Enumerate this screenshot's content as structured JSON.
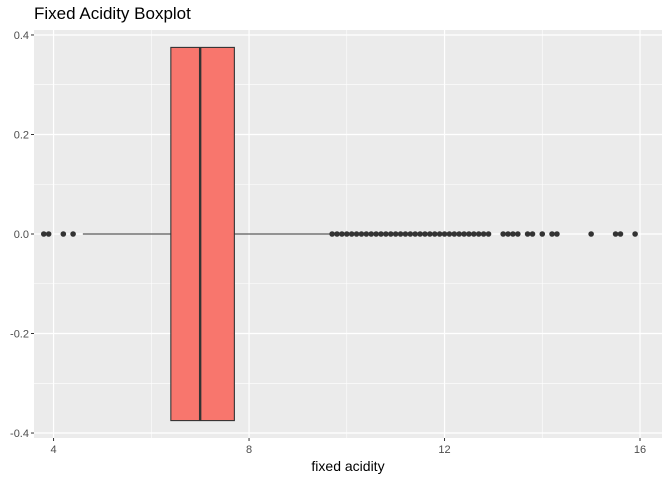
{
  "chart_data": {
    "type": "boxplot",
    "title": "Fixed Acidity Boxplot",
    "xlabel": "fixed acidity",
    "ylabel": "",
    "xlim": [
      3.6,
      16.45
    ],
    "ylim": [
      -0.41,
      0.41
    ],
    "x_ticks": [
      4,
      8,
      12,
      16
    ],
    "y_ticks": [
      -0.4,
      -0.2,
      0.0,
      0.2,
      0.4
    ],
    "y_tick_labels": [
      "-0.4",
      "-0.2",
      "0.0",
      "0.2",
      "0.4"
    ],
    "box": {
      "q1": 6.4,
      "median": 7.0,
      "q3": 7.7,
      "whisker_low": 4.6,
      "whisker_high": 9.65,
      "y_center": 0.0,
      "y_half_width": 0.375,
      "fill": "#F8766D",
      "stroke": "#333333"
    },
    "outliers": [
      3.8,
      3.9,
      4.2,
      4.4,
      9.7,
      9.8,
      9.9,
      10.0,
      10.1,
      10.2,
      10.3,
      10.4,
      10.5,
      10.6,
      10.7,
      10.8,
      10.9,
      11.0,
      11.1,
      11.2,
      11.3,
      11.4,
      11.5,
      11.6,
      11.7,
      11.8,
      11.9,
      12.0,
      12.1,
      12.2,
      12.3,
      12.4,
      12.5,
      12.6,
      12.7,
      12.8,
      12.9,
      13.2,
      13.3,
      13.4,
      13.5,
      13.7,
      13.8,
      14.0,
      14.2,
      14.3,
      15.0,
      15.5,
      15.6,
      15.9
    ],
    "panel_background": "#EBEBEB",
    "grid_color": "#FFFFFF",
    "grid": true
  }
}
